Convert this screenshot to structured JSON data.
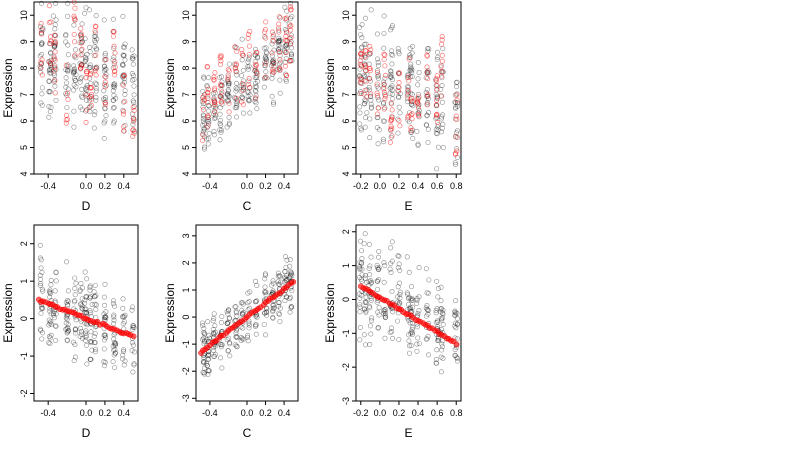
{
  "chart_data": [
    {
      "type": "scatter",
      "xlabel": "D",
      "ylabel": "Expression",
      "xlim": [
        -0.55,
        0.55
      ],
      "ylim": [
        4,
        10.5
      ],
      "xticks": [
        -0.4,
        0.0,
        0.2,
        0.4
      ],
      "yticks": [
        4,
        5,
        6,
        7,
        8,
        9,
        10
      ],
      "fit_color": "#ff0000",
      "fit_mode": "scattered",
      "groups": [
        -0.47,
        -0.38,
        -0.33,
        -0.2,
        -0.12,
        -0.05,
        0.0,
        0.05,
        0.1,
        0.2,
        0.3,
        0.4,
        0.5
      ],
      "black_center": 7.8,
      "black_slope": -1.2,
      "black_spread": 1.2,
      "fit_values": [
        8.6,
        9.3,
        8.2,
        7.1,
        9.4,
        8.4,
        7.0,
        6.6,
        8.8,
        7.2,
        8.6,
        6.7,
        6.5
      ]
    },
    {
      "type": "scatter",
      "xlabel": "C",
      "ylabel": "Expression",
      "xlim": [
        -0.55,
        0.55
      ],
      "ylim": [
        4,
        10.5
      ],
      "xticks": [
        -0.4,
        0.0,
        0.2,
        0.4
      ],
      "yticks": [
        4,
        5,
        6,
        7,
        8,
        9,
        10
      ],
      "fit_color": "#ff0000",
      "fit_mode": "scattered",
      "groups": [
        -0.47,
        -0.42,
        -0.35,
        -0.28,
        -0.2,
        -0.12,
        -0.05,
        0.02,
        0.1,
        0.2,
        0.28,
        0.35,
        0.42,
        0.47
      ],
      "black_center": 7.6,
      "black_slope": 3.0,
      "black_spread": 0.9,
      "fit_values": [
        6.3,
        6.9,
        7.2,
        7.6,
        7.1,
        7.9,
        7.6,
        8.2,
        7.8,
        8.7,
        8.4,
        9.0,
        8.8,
        9.4
      ]
    },
    {
      "type": "scatter",
      "xlabel": "E",
      "ylabel": "Expression",
      "xlim": [
        -0.25,
        0.85
      ],
      "ylim": [
        4,
        10.5
      ],
      "xticks": [
        -0.2,
        0.0,
        0.2,
        0.4,
        0.6,
        0.8
      ],
      "yticks": [
        4,
        5,
        6,
        7,
        8,
        9,
        10
      ],
      "fit_color": "#ff0000",
      "fit_mode": "scattered",
      "groups": [
        -0.2,
        -0.15,
        -0.1,
        -0.02,
        0.05,
        0.12,
        0.2,
        0.3,
        0.33,
        0.4,
        0.5,
        0.6,
        0.65,
        0.8
      ],
      "black_center": 7.5,
      "black_slope": -1.5,
      "black_spread": 1.3,
      "fit_values": [
        8.0,
        7.7,
        7.9,
        6.9,
        7.6,
        6.3,
        6.8,
        7.3,
        6.7,
        7.0,
        7.5,
        6.8,
        8.0,
        5.8
      ]
    },
    {
      "type": "scatter",
      "xlabel": "D",
      "ylabel": "Expression",
      "xlim": [
        -0.55,
        0.55
      ],
      "ylim": [
        -2.2,
        2.5
      ],
      "xticks": [
        -0.4,
        0.0,
        0.2,
        0.4
      ],
      "yticks": [
        -2,
        -1,
        0,
        1,
        2
      ],
      "fit_color": "#ff0000",
      "fit_mode": "line",
      "groups": [
        -0.47,
        -0.38,
        -0.33,
        -0.2,
        -0.12,
        -0.05,
        0.0,
        0.05,
        0.1,
        0.2,
        0.3,
        0.4,
        0.5
      ],
      "black_center": 0.0,
      "black_slope": -1.0,
      "black_spread": 0.7,
      "fit_line": [
        [
          -0.5,
          0.5
        ],
        [
          0.5,
          -0.48
        ]
      ]
    },
    {
      "type": "scatter",
      "xlabel": "C",
      "ylabel": "Expression",
      "xlim": [
        -0.55,
        0.55
      ],
      "ylim": [
        -3.1,
        3.4
      ],
      "xticks": [
        -0.4,
        0.0,
        0.2,
        0.4
      ],
      "yticks": [
        -3,
        -2,
        -1,
        0,
        1,
        2,
        3
      ],
      "fit_color": "#ff0000",
      "fit_mode": "line",
      "groups": [
        -0.47,
        -0.42,
        -0.35,
        -0.28,
        -0.2,
        -0.12,
        -0.05,
        0.02,
        0.1,
        0.2,
        0.28,
        0.35,
        0.42,
        0.47
      ],
      "black_center": 0.0,
      "black_slope": 2.7,
      "black_spread": 0.6,
      "fit_line": [
        [
          -0.5,
          -1.3
        ],
        [
          0.5,
          1.3
        ]
      ]
    },
    {
      "type": "scatter",
      "xlabel": "E",
      "ylabel": "Expression",
      "xlim": [
        -0.25,
        0.85
      ],
      "ylim": [
        -3.0,
        2.2
      ],
      "xticks": [
        -0.2,
        0.0,
        0.2,
        0.4,
        0.6,
        0.8
      ],
      "yticks": [
        -3,
        -2,
        -1,
        0,
        1,
        2
      ],
      "fit_color": "#ff0000",
      "fit_mode": "line",
      "groups": [
        -0.2,
        -0.15,
        -0.1,
        -0.02,
        0.05,
        0.12,
        0.2,
        0.3,
        0.33,
        0.4,
        0.5,
        0.6,
        0.65,
        0.8
      ],
      "black_center": 0.2,
      "black_slope": -1.6,
      "black_spread": 0.8,
      "fit_line": [
        [
          -0.2,
          0.4
        ],
        [
          0.8,
          -1.3
        ]
      ]
    }
  ]
}
